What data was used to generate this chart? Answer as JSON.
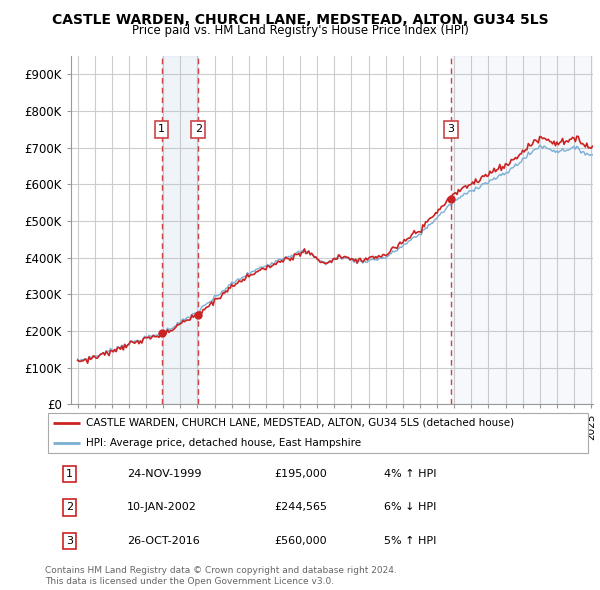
{
  "title": "CASTLE WARDEN, CHURCH LANE, MEDSTEAD, ALTON, GU34 5LS",
  "subtitle": "Price paid vs. HM Land Registry's House Price Index (HPI)",
  "ylim": [
    0,
    950000
  ],
  "yticks": [
    0,
    100000,
    200000,
    300000,
    400000,
    500000,
    600000,
    700000,
    800000,
    900000
  ],
  "ytick_labels": [
    "£0",
    "£100K",
    "£200K",
    "£300K",
    "£400K",
    "£500K",
    "£600K",
    "£700K",
    "£800K",
    "£900K"
  ],
  "background_color": "#ffffff",
  "plot_bg_color": "#ffffff",
  "grid_color": "#cccccc",
  "hpi_color": "#7bafd4",
  "price_color": "#cc2222",
  "dashed_color": "#cc4444",
  "transactions": [
    {
      "num": 1,
      "date_label": "24-NOV-1999",
      "date_year": 1999.9,
      "price": 195000,
      "pct": "4%",
      "dir": "↑"
    },
    {
      "num": 2,
      "date_label": "10-JAN-2002",
      "date_year": 2002.05,
      "price": 244565,
      "pct": "6%",
      "dir": "↓"
    },
    {
      "num": 3,
      "date_label": "26-OCT-2016",
      "date_year": 2016.82,
      "price": 560000,
      "pct": "5%",
      "dir": "↑"
    }
  ],
  "legend_label_property": "CASTLE WARDEN, CHURCH LANE, MEDSTEAD, ALTON, GU34 5LS (detached house)",
  "legend_label_hpi": "HPI: Average price, detached house, East Hampshire",
  "footer1": "Contains HM Land Registry data © Crown copyright and database right 2024.",
  "footer2": "This data is licensed under the Open Government Licence v3.0.",
  "table_rows": [
    [
      "1",
      "24-NOV-1999",
      "£195,000",
      "4% ↑ HPI"
    ],
    [
      "2",
      "10-JAN-2002",
      "£244,565",
      "6% ↓ HPI"
    ],
    [
      "3",
      "26-OCT-2016",
      "£560,000",
      "5% ↑ HPI"
    ]
  ]
}
